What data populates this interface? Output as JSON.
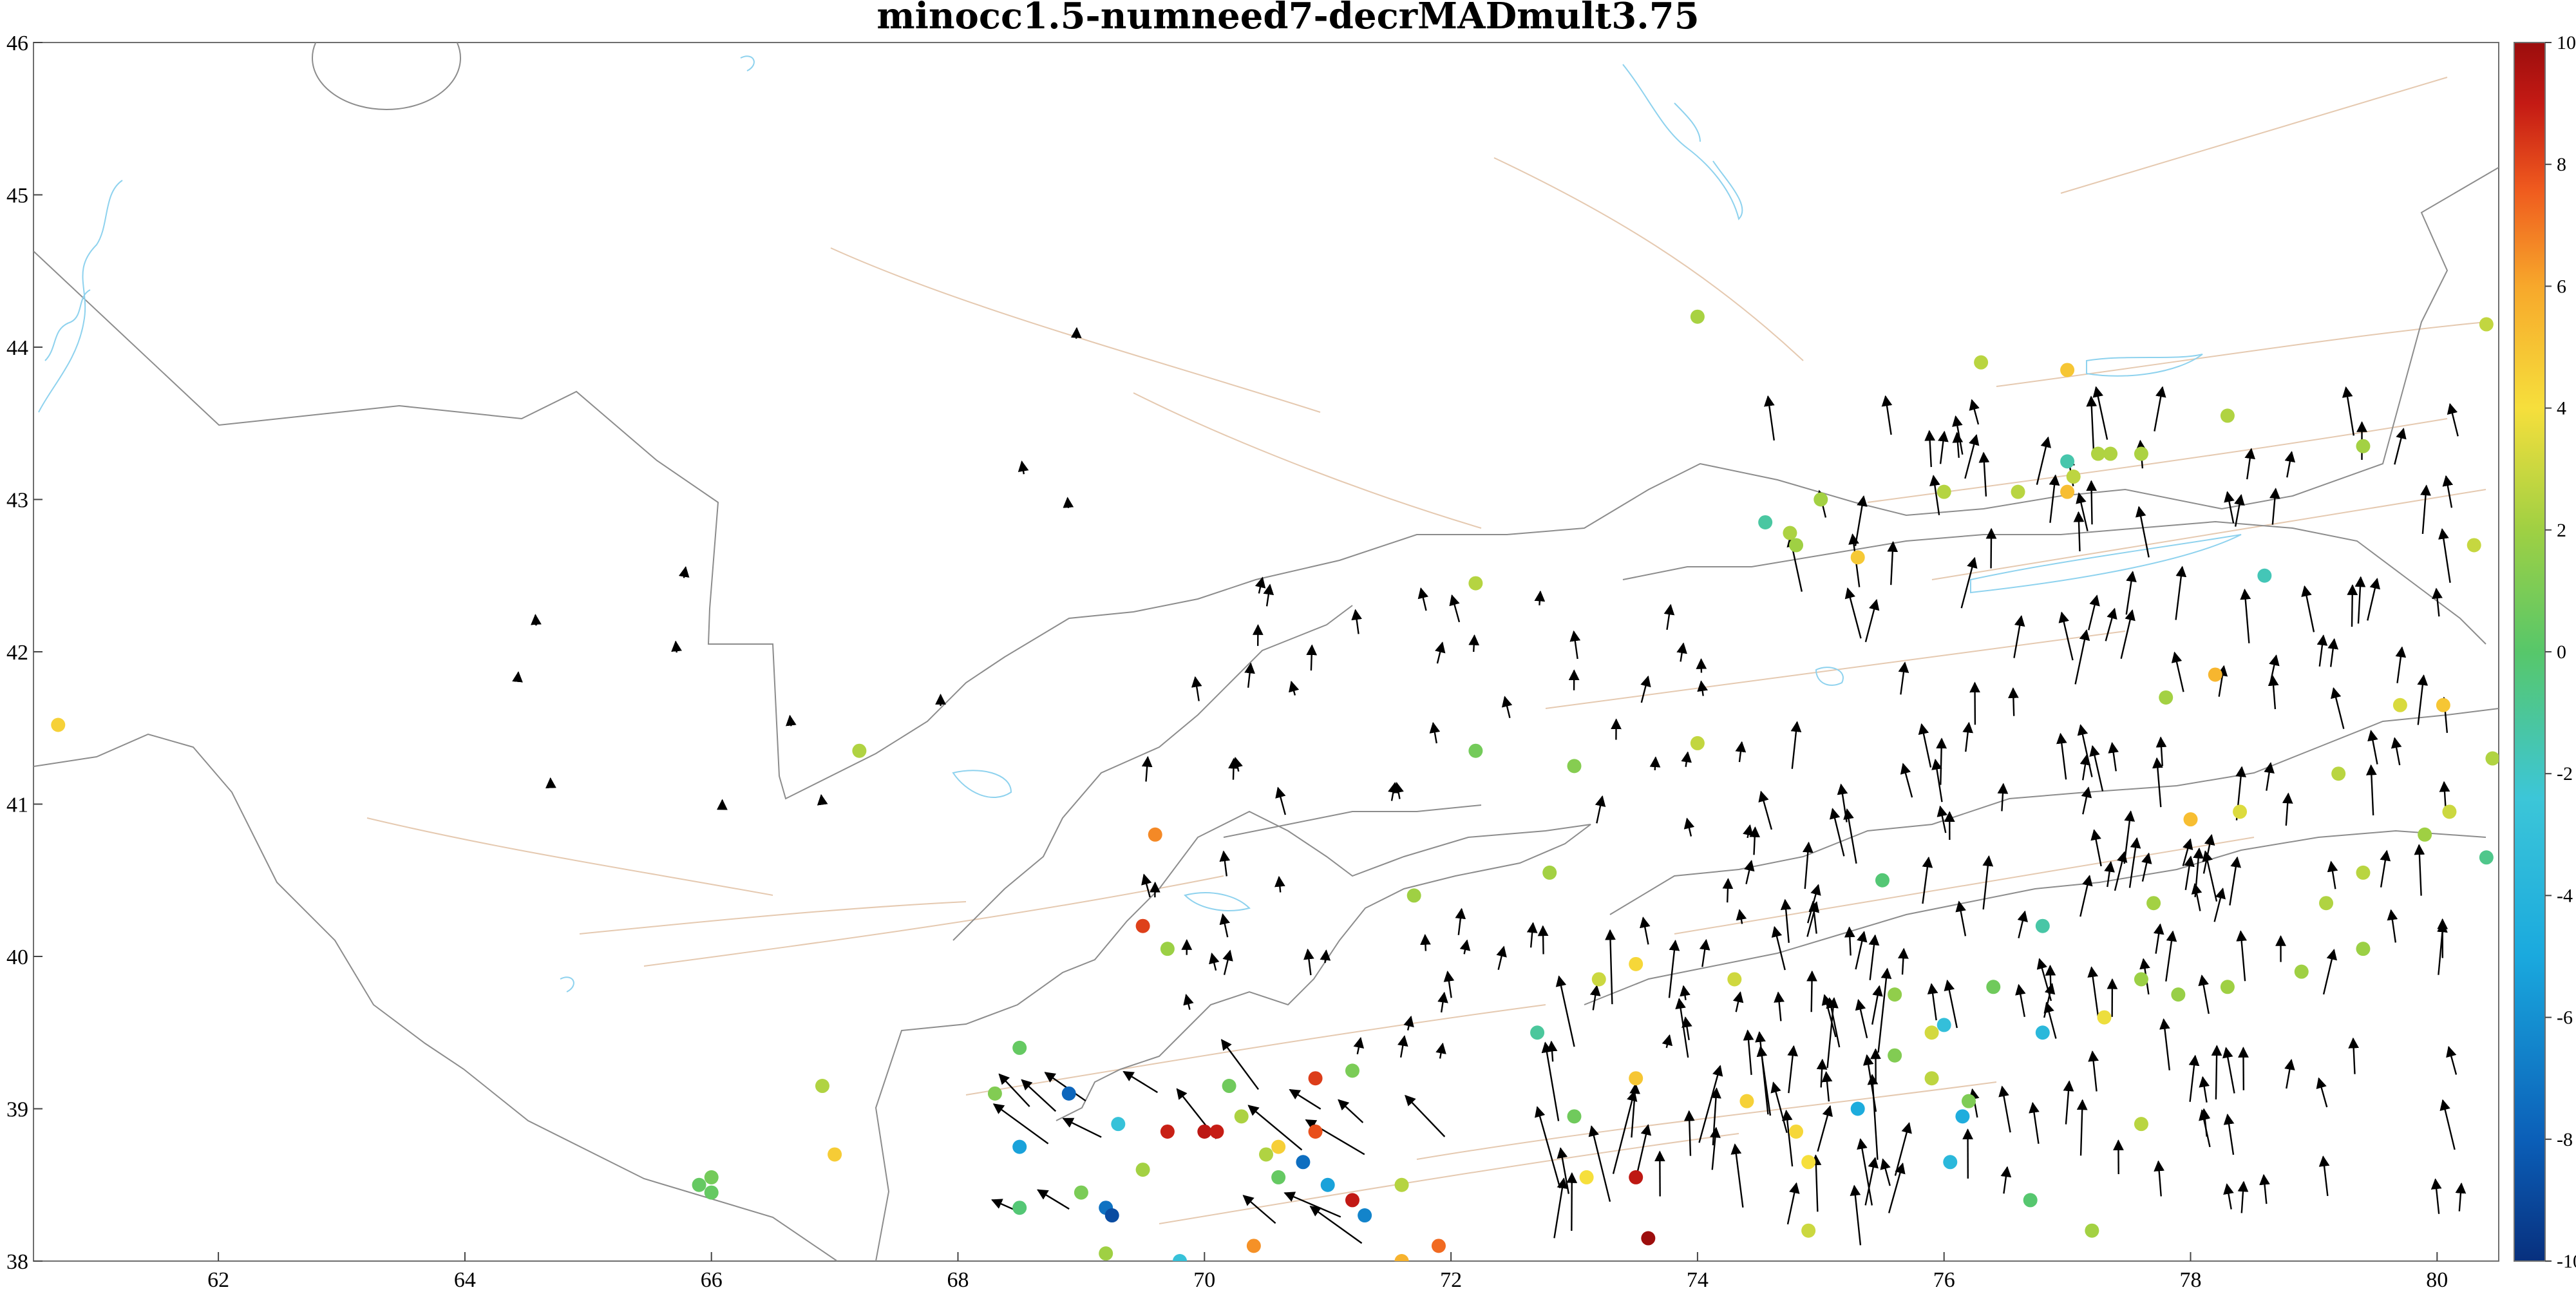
{
  "figure": {
    "title": "minocc1.5-numneed7-decrMADmult3.75",
    "xlim": [
      60.5,
      80.5
    ],
    "ylim": [
      38,
      46
    ],
    "x_ticks": [
      "62",
      "64",
      "66",
      "68",
      "70",
      "72",
      "74",
      "76",
      "78",
      "80"
    ],
    "y_ticks": [
      "38",
      "39",
      "40",
      "41",
      "42",
      "43",
      "44",
      "45",
      "46"
    ]
  },
  "colorbar": {
    "range": [
      -10,
      10
    ],
    "ticks": [
      "10",
      "8",
      "6",
      "4",
      "2",
      "0",
      "-2",
      "-4",
      "-6",
      "-8",
      "-10"
    ],
    "colormap": "jet",
    "colors": [
      "#08307e",
      "#0b5fb8",
      "#1aa9de",
      "#3cc6d8",
      "#57c76a",
      "#9fd043",
      "#f6df3c",
      "#f7a82b",
      "#ef5a1e",
      "#c41a14",
      "#9b0d0d"
    ]
  },
  "colors": {
    "border": "#8c8c8c",
    "coast": "#8ed2ee",
    "fault": "#e5c9b0",
    "arrow": "#000000"
  },
  "chart_data": {
    "type": "scatter",
    "title": "minocc1.5-numneed7-decrMADmult3.75",
    "xlim": [
      60.5,
      80.5
    ],
    "ylim": [
      38,
      46
    ],
    "series": [
      {
        "points": [
          [
            60.7,
            41.52,
            2.5
          ],
          [
            74.0,
            44.2,
            0.2
          ],
          [
            76.3,
            43.9,
            0.6
          ],
          [
            77.0,
            43.85,
            2.9
          ],
          [
            80.4,
            44.15,
            0.8
          ],
          [
            72.2,
            42.45,
            0.5
          ],
          [
            75.3,
            42.62,
            2.8
          ],
          [
            75.0,
            43.0,
            0.1
          ],
          [
            74.75,
            42.78,
            0.3
          ],
          [
            74.55,
            42.85,
            -3.0
          ],
          [
            74.8,
            42.7,
            0.0
          ],
          [
            76.0,
            43.05,
            0.5
          ],
          [
            76.6,
            43.05,
            0.6
          ],
          [
            77.0,
            43.25,
            -3.2
          ],
          [
            77.05,
            43.15,
            0.7
          ],
          [
            77.25,
            43.3,
            0.4
          ],
          [
            77.35,
            43.3,
            0.4
          ],
          [
            77.0,
            43.05,
            3.2
          ],
          [
            77.6,
            43.3,
            0.3
          ],
          [
            78.3,
            43.55,
            0.4
          ],
          [
            79.4,
            43.35,
            0.1
          ],
          [
            80.3,
            42.7,
            0.9
          ],
          [
            78.6,
            42.5,
            -3.4
          ],
          [
            78.2,
            41.85,
            3.5
          ],
          [
            77.8,
            41.7,
            0.1
          ],
          [
            79.7,
            41.65,
            1.3
          ],
          [
            80.05,
            41.65,
            2.9
          ],
          [
            80.45,
            41.3,
            0.4
          ],
          [
            79.2,
            41.2,
            0.6
          ],
          [
            80.1,
            40.95,
            1.0
          ],
          [
            79.9,
            40.8,
            0.0
          ],
          [
            80.4,
            40.65,
            -2.6
          ],
          [
            78.4,
            40.95,
            1.4
          ],
          [
            78.0,
            40.9,
            3.2
          ],
          [
            67.2,
            41.35,
            0.4
          ],
          [
            72.2,
            41.35,
            -1.2
          ],
          [
            73.0,
            41.25,
            -0.7
          ],
          [
            74.0,
            41.4,
            0.8
          ],
          [
            69.6,
            40.8,
            4.8
          ],
          [
            69.5,
            40.2,
            6.8
          ],
          [
            69.7,
            40.05,
            -0.1
          ],
          [
            71.7,
            40.4,
            0.0
          ],
          [
            72.8,
            40.55,
            0.1
          ],
          [
            75.5,
            40.5,
            -2.2
          ],
          [
            79.4,
            40.55,
            0.6
          ],
          [
            79.1,
            40.35,
            0.4
          ],
          [
            76.8,
            40.2,
            -3.1
          ],
          [
            77.7,
            40.35,
            0.1
          ],
          [
            73.5,
            39.95,
            2.3
          ],
          [
            73.2,
            39.85,
            1.0
          ],
          [
            74.3,
            39.85,
            1.1
          ],
          [
            75.6,
            39.75,
            -0.4
          ],
          [
            76.4,
            39.8,
            -1.3
          ],
          [
            77.6,
            39.85,
            -0.1
          ],
          [
            77.9,
            39.75,
            -0.2
          ],
          [
            78.3,
            39.8,
            0.0
          ],
          [
            78.9,
            39.9,
            0.0
          ],
          [
            79.4,
            40.05,
            -0.1
          ],
          [
            77.3,
            39.6,
            1.8
          ],
          [
            76.0,
            39.55,
            -4.5
          ],
          [
            75.9,
            39.5,
            1.2
          ],
          [
            76.8,
            39.5,
            -5.0
          ],
          [
            72.7,
            39.5,
            -2.9
          ],
          [
            75.6,
            39.35,
            -0.8
          ],
          [
            75.9,
            39.2,
            0.7
          ],
          [
            73.5,
            39.2,
            2.9
          ],
          [
            76.2,
            39.05,
            -0.9
          ],
          [
            74.4,
            39.05,
            2.5
          ],
          [
            73.0,
            38.95,
            -1.3
          ],
          [
            75.3,
            39.0,
            -5.8
          ],
          [
            76.15,
            38.95,
            -5.7
          ],
          [
            77.6,
            38.9,
            0.6
          ],
          [
            74.8,
            38.85,
            2.3
          ],
          [
            74.9,
            38.65,
            2.0
          ],
          [
            76.05,
            38.65,
            -5.0
          ],
          [
            73.1,
            38.55,
            2.0
          ],
          [
            73.5,
            38.55,
            8.3
          ],
          [
            76.7,
            38.4,
            -2.1
          ],
          [
            74.9,
            38.2,
            1.0
          ],
          [
            77.2,
            38.2,
            0.1
          ],
          [
            73.6,
            38.15,
            9.9
          ],
          [
            66.9,
            39.15,
            0.4
          ],
          [
            66.0,
            38.55,
            -1.2
          ],
          [
            65.9,
            38.5,
            -1.6
          ],
          [
            66.0,
            38.45,
            -1.6
          ],
          [
            67.0,
            38.7,
            2.7
          ],
          [
            68.5,
            39.4,
            -1.6
          ],
          [
            68.3,
            39.1,
            -0.8
          ],
          [
            68.9,
            39.1,
            -7.8
          ],
          [
            68.5,
            38.75,
            -6.2
          ],
          [
            69.3,
            38.9,
            -4.3
          ],
          [
            69.7,
            38.85,
            7.8
          ],
          [
            70.2,
            39.15,
            -1.3
          ],
          [
            70.3,
            38.95,
            0.3
          ],
          [
            70.9,
            39.2,
            6.9
          ],
          [
            71.2,
            39.25,
            -1.0
          ],
          [
            70.9,
            38.85,
            6.3
          ],
          [
            69.5,
            38.6,
            0.1
          ],
          [
            70.0,
            38.85,
            8.4
          ],
          [
            70.1,
            38.85,
            7.9
          ],
          [
            70.6,
            38.75,
            2.6
          ],
          [
            70.5,
            38.7,
            0.4
          ],
          [
            70.8,
            38.65,
            -7.6
          ],
          [
            70.6,
            38.55,
            -1.6
          ],
          [
            71.0,
            38.5,
            -6.2
          ],
          [
            71.2,
            38.4,
            8.1
          ],
          [
            71.6,
            38.5,
            0.5
          ],
          [
            69.0,
            38.45,
            -1.0
          ],
          [
            69.2,
            38.35,
            -7.5
          ],
          [
            69.25,
            38.3,
            -8.8
          ],
          [
            68.5,
            38.35,
            -2.2
          ],
          [
            71.3,
            38.3,
            -7.0
          ],
          [
            71.9,
            38.1,
            5.6
          ],
          [
            70.4,
            38.1,
            4.6
          ],
          [
            69.2,
            38.05,
            0.0
          ],
          [
            69.8,
            38.0,
            -4.3
          ],
          [
            71.6,
            38.0,
            3.6
          ]
        ]
      }
    ]
  }
}
